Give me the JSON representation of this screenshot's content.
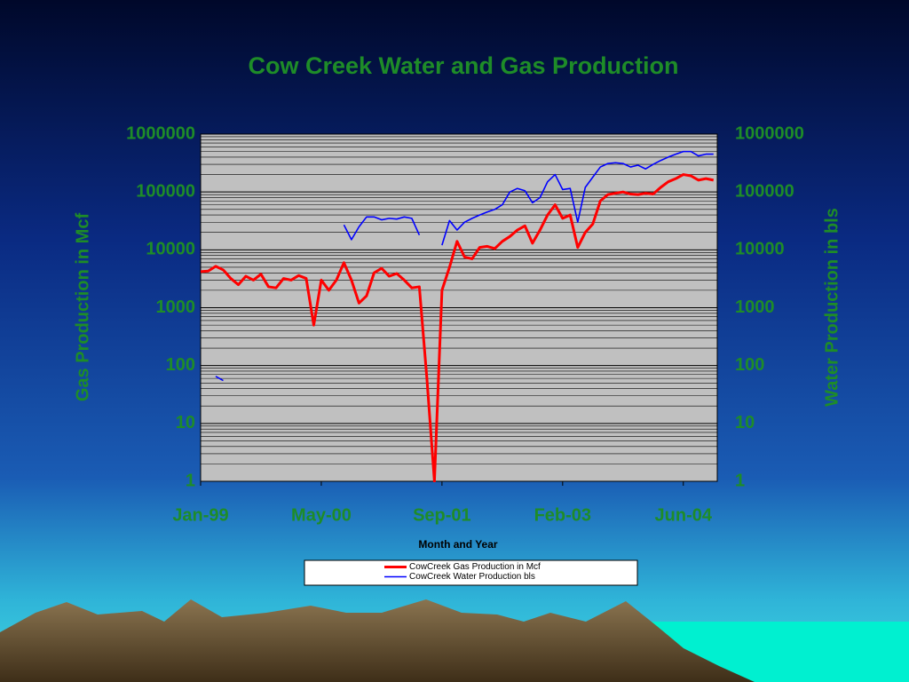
{
  "chart_data": {
    "type": "line",
    "title": "Cow Creek Water and Gas Production",
    "x_label": "Month and Year",
    "y_label": "Gas Production in Mcf",
    "y2_label": "Water Production in bls",
    "log_scale": true,
    "grid": true,
    "minor_grid": true,
    "legend": "bottom",
    "categories": [
      "Jan-99",
      null,
      null,
      null,
      null,
      null,
      null,
      null,
      null,
      null,
      null,
      null,
      null,
      null,
      null,
      null,
      "May-00",
      null,
      null,
      null,
      null,
      null,
      null,
      null,
      null,
      null,
      null,
      null,
      null,
      null,
      null,
      null,
      "Sep-01",
      null,
      null,
      null,
      null,
      null,
      null,
      null,
      null,
      null,
      null,
      null,
      null,
      null,
      null,
      null,
      "Feb-03",
      null,
      null,
      null,
      null,
      null,
      null,
      null,
      null,
      null,
      null,
      null,
      null,
      null,
      null,
      null,
      "Jun-04",
      null,
      null,
      null,
      null
    ],
    "ylim": [
      1,
      1000000
    ],
    "yticks": [
      1,
      10,
      100,
      1000,
      10000,
      100000,
      1000000
    ],
    "y2lim": [
      1,
      1000000
    ],
    "y2ticks": [
      1,
      10,
      100,
      1000,
      10000,
      100000,
      1000000
    ],
    "series": [
      {
        "name": "CowCreek Gas Production in Mcf",
        "color": "#ff0000",
        "values": [
          4200,
          4300,
          5200,
          4500,
          3200,
          2500,
          3500,
          3000,
          3800,
          2300,
          2200,
          3200,
          3000,
          3600,
          3200,
          500,
          3000,
          2000,
          3000,
          6000,
          3000,
          1200,
          1600,
          4000,
          4800,
          3500,
          3900,
          3000,
          2200,
          2300,
          60,
          1,
          2000,
          5000,
          14000,
          7500,
          7000,
          11000,
          11500,
          10500,
          14000,
          17000,
          22000,
          26000,
          13000,
          22000,
          40000,
          60000,
          35000,
          40000,
          11000,
          20000,
          28000,
          70000,
          90000,
          95000,
          100000,
          92000,
          90000,
          95000,
          92000,
          120000,
          150000,
          170000,
          200000,
          190000,
          160000,
          170000,
          160000
        ]
      },
      {
        "name": "CowCreek Water Production bls",
        "color": "#0000ff",
        "axis": "y2",
        "values": [
          null,
          null,
          65,
          55,
          null,
          null,
          null,
          null,
          null,
          null,
          null,
          null,
          null,
          null,
          null,
          null,
          null,
          null,
          null,
          27000,
          15000,
          25000,
          37000,
          37000,
          33000,
          35000,
          34000,
          37000,
          35000,
          18000,
          null,
          null,
          12000,
          32000,
          22000,
          30000,
          35000,
          40000,
          45000,
          50000,
          60000,
          100000,
          115000,
          105000,
          65000,
          80000,
          150000,
          200000,
          110000,
          115000,
          30000,
          120000,
          180000,
          270000,
          310000,
          320000,
          310000,
          270000,
          290000,
          250000,
          300000,
          350000,
          400000,
          450000,
          500000,
          500000,
          420000,
          450000,
          450000
        ]
      }
    ]
  }
}
